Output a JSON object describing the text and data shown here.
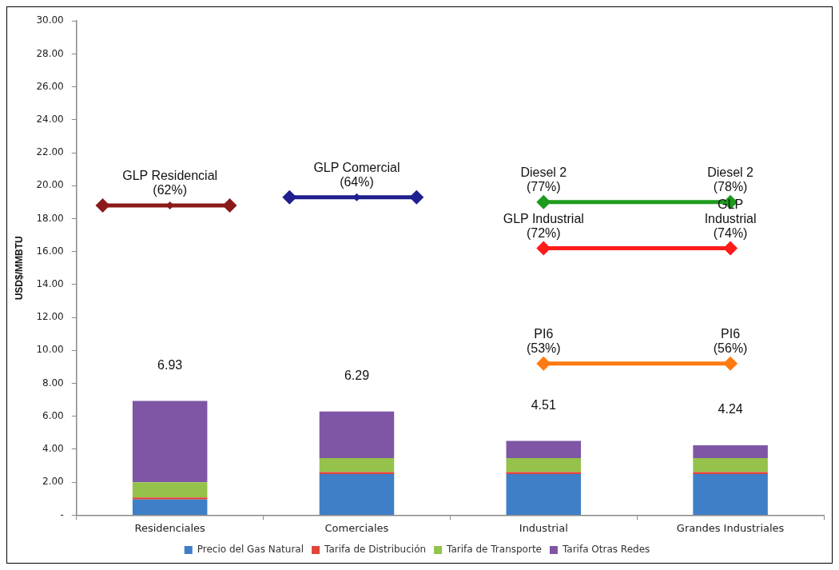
{
  "chart_data": {
    "type": "bar",
    "stacked": true,
    "ylabel": "USD$/MMBTU",
    "categories": [
      "Residenciales",
      "Comerciales",
      "Industrial",
      "Grandes Industriales"
    ],
    "ylim": [
      0,
      30
    ],
    "yticks": [
      {
        "value": 0,
        "label": "-"
      },
      {
        "value": 2,
        "label": "2.00"
      },
      {
        "value": 4,
        "label": "4.00"
      },
      {
        "value": 6,
        "label": "6.00"
      },
      {
        "value": 8,
        "label": "8.00"
      },
      {
        "value": 10,
        "label": "10.00"
      },
      {
        "value": 12,
        "label": "12.00"
      },
      {
        "value": 14,
        "label": "14.00"
      },
      {
        "value": 16,
        "label": "16.00"
      },
      {
        "value": 18,
        "label": "18.00"
      },
      {
        "value": 20,
        "label": "20.00"
      },
      {
        "value": 22,
        "label": "22.00"
      },
      {
        "value": 24,
        "label": "24.00"
      },
      {
        "value": 26,
        "label": "26.00"
      },
      {
        "value": 28,
        "label": "28.00"
      },
      {
        "value": 30,
        "label": "30.00"
      }
    ],
    "grid": false,
    "legend": "bottom",
    "series": [
      {
        "name": "Precio del Gas Natural",
        "color": "#3f7fc8",
        "values": [
          0.95,
          2.5,
          2.5,
          2.5
        ]
      },
      {
        "name": "Tarifa de Distribución",
        "color": "#e0453a",
        "values": [
          0.12,
          0.12,
          0.12,
          0.12
        ]
      },
      {
        "name": "Tarifa de Transporte",
        "color": "#94c24a",
        "values": [
          0.93,
          0.85,
          0.85,
          0.85
        ]
      },
      {
        "name": "Tarifa Otras Redes",
        "color": "#7f56a6",
        "values": [
          4.93,
          2.82,
          1.04,
          0.77
        ]
      },
      {
        "type": "line",
        "marker": "diamond",
        "color": "#8b1a1a",
        "values": [
          18.8,
          null,
          null,
          null
        ]
      },
      {
        "type": "line",
        "marker": "diamond",
        "color": "#1f1f8f",
        "values": [
          null,
          19.3,
          null,
          null
        ]
      },
      {
        "type": "line",
        "marker": "diamond",
        "color": "#1e9a1e",
        "values": [
          null,
          null,
          19.0,
          19.0
        ]
      },
      {
        "type": "line",
        "marker": "diamond",
        "color": "#ff1a1a",
        "values": [
          null,
          null,
          16.2,
          16.2
        ]
      },
      {
        "type": "line",
        "marker": "diamond",
        "color": "#ff7a10",
        "values": [
          null,
          null,
          9.2,
          9.2
        ]
      }
    ],
    "totals": [
      "6.93",
      "6.29",
      "4.51",
      "4.24"
    ],
    "annotations": [
      {
        "text": "GLP Residencial\n(62%)",
        "x": "Residenciales",
        "y": 18.8
      },
      {
        "text": "GLP Comercial\n(64%)",
        "x": "Comerciales",
        "y": 19.3
      },
      {
        "text": "Diesel 2\n(77%)",
        "x": "Industrial",
        "y": 19.0
      },
      {
        "text": "Diesel 2\n(78%)",
        "x": "Grandes Industriales",
        "y": 19.0
      },
      {
        "text": "GLP Industrial\n(72%)",
        "x": "Industrial",
        "y": 16.2
      },
      {
        "text": "GLP\nIndustrial\n(74%)",
        "x": "Grandes Industriales",
        "y": 16.2
      },
      {
        "text": "PI6\n(53%)",
        "x": "Industrial",
        "y": 9.2
      },
      {
        "text": "PI6\n(56%)",
        "x": "Grandes Industriales",
        "y": 9.2
      }
    ]
  }
}
